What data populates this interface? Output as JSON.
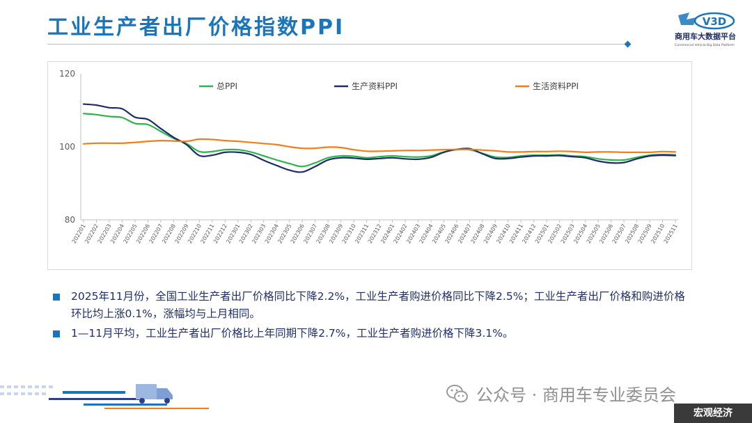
{
  "header": {
    "title": "工业生产者出厂价格指数PPI",
    "logo_text": "商用车大数据平台",
    "logo_mark": "V3D",
    "logo_subtext": "Commercial Vehicle Big Data Platform"
  },
  "chart_data": {
    "type": "line",
    "title": "",
    "xlabel": "",
    "ylabel": "",
    "ylim": [
      80,
      120
    ],
    "yticks": [
      80,
      100,
      120
    ],
    "grid": false,
    "legend": "top",
    "x": [
      "202201",
      "202202",
      "202203",
      "202204",
      "202205",
      "202206",
      "202207",
      "202208",
      "202209",
      "202210",
      "202211",
      "202212",
      "202301",
      "202302",
      "202303",
      "202304",
      "202305",
      "202306",
      "202307",
      "202308",
      "202309",
      "202310",
      "202311",
      "202312",
      "202401",
      "202402",
      "202403",
      "202404",
      "202405",
      "202406",
      "202407",
      "202408",
      "202409",
      "202410",
      "202411",
      "202412",
      "202501",
      "202502",
      "202503",
      "202504",
      "202505",
      "202506",
      "202507",
      "202508",
      "202509",
      "202510",
      "202511"
    ],
    "series": [
      {
        "name": "总PPI",
        "color": "#2eb34a",
        "values": [
          109.1,
          108.8,
          108.3,
          108.0,
          106.4,
          106.1,
          104.2,
          102.3,
          100.9,
          98.7,
          98.7,
          99.2,
          99.2,
          98.6,
          97.5,
          96.4,
          95.4,
          94.6,
          95.6,
          97.0,
          97.5,
          97.4,
          97.0,
          97.3,
          97.5,
          97.3,
          97.2,
          97.5,
          98.6,
          99.2,
          99.2,
          98.2,
          97.2,
          97.1,
          97.5,
          97.7,
          97.7,
          97.8,
          97.5,
          97.3,
          96.7,
          96.4,
          96.4,
          97.1,
          97.7,
          97.9,
          97.8
        ]
      },
      {
        "name": "生产资料PPI",
        "color": "#1c2b6b",
        "values": [
          111.7,
          111.4,
          110.7,
          110.4,
          108.1,
          107.5,
          105.0,
          102.6,
          100.6,
          97.6,
          97.7,
          98.5,
          98.5,
          97.9,
          96.3,
          94.9,
          93.6,
          93.1,
          94.6,
          96.4,
          97.0,
          96.9,
          96.6,
          96.8,
          97.0,
          96.7,
          96.6,
          97.1,
          98.5,
          99.3,
          99.5,
          98.1,
          96.8,
          96.8,
          97.2,
          97.5,
          97.5,
          97.6,
          97.3,
          97.0,
          96.1,
          95.6,
          95.7,
          96.7,
          97.5,
          97.7,
          97.6
        ]
      },
      {
        "name": "生活资料PPI",
        "color": "#f07d1a",
        "values": [
          100.8,
          101.0,
          101.0,
          101.0,
          101.2,
          101.5,
          101.7,
          101.6,
          101.5,
          102.1,
          102.0,
          101.7,
          101.5,
          101.2,
          100.9,
          100.6,
          100.0,
          99.6,
          99.6,
          99.9,
          99.8,
          99.2,
          98.8,
          98.8,
          98.9,
          99.0,
          99.0,
          99.1,
          99.2,
          99.3,
          99.3,
          99.1,
          98.9,
          98.6,
          98.6,
          98.7,
          98.7,
          98.8,
          98.7,
          98.5,
          98.6,
          98.6,
          98.5,
          98.5,
          98.5,
          98.7,
          98.6
        ]
      }
    ]
  },
  "bullets": [
    "2025年11月份，全国工业生产者出厂价格同比下降2.2%，工业生产者购进价格同比下降2.5%；工业生产者出厂价格和购进价格环比均上涨0.1%，涨幅均与上月相同。",
    "1—11月平均，工业生产者出厂价格比上年同期下降2.7%，工业生产者购进价格下降3.1%。"
  ],
  "footer": {
    "wechat_label": "公众号 · 商用车专业委员会",
    "tag": "宏观经济"
  },
  "icons": [
    "wechat-icon",
    "truck-icon"
  ]
}
